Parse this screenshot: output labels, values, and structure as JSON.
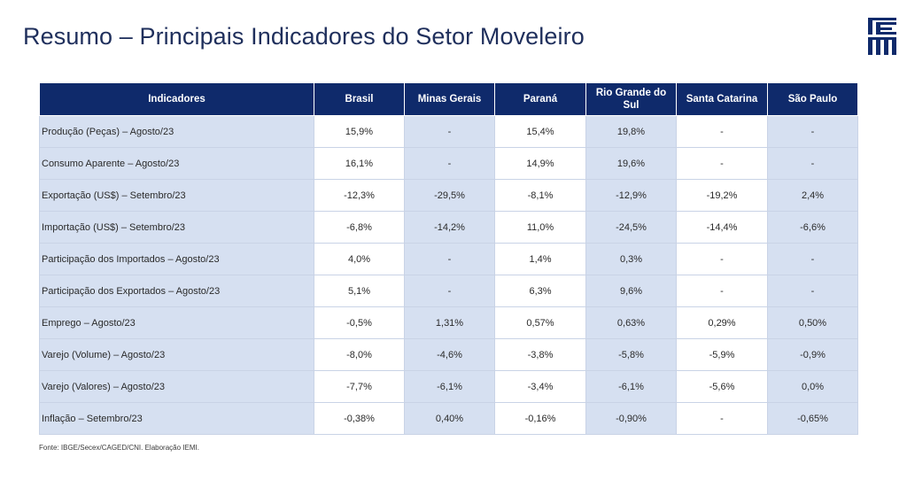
{
  "title": "Resumo – Principais Indicadores do Setor Moveleiro",
  "logo": {
    "name": "IEMI logo",
    "text": "IEMI"
  },
  "table": {
    "headers": [
      "Indicadores",
      "Brasil",
      "Minas Gerais",
      "Paraná",
      "Rio Grande do Sul",
      "Santa Catarina",
      "São Paulo"
    ],
    "rows": [
      {
        "indicator": "Produção (Peças) – Agosto/23",
        "values": [
          "15,9%",
          "-",
          "15,4%",
          "19,8%",
          "-",
          "-"
        ]
      },
      {
        "indicator": "Consumo Aparente – Agosto/23",
        "values": [
          "16,1%",
          "-",
          "14,9%",
          "19,6%",
          "-",
          "-"
        ]
      },
      {
        "indicator": "Exportação (US$) – Setembro/23",
        "values": [
          "-12,3%",
          "-29,5%",
          "-8,1%",
          "-12,9%",
          "-19,2%",
          "2,4%"
        ]
      },
      {
        "indicator": "Importação (US$) – Setembro/23",
        "values": [
          "-6,8%",
          "-14,2%",
          "11,0%",
          "-24,5%",
          "-14,4%",
          "-6,6%"
        ]
      },
      {
        "indicator": "Participação dos Importados – Agosto/23",
        "values": [
          "4,0%",
          "-",
          "1,4%",
          "0,3%",
          "-",
          "-"
        ]
      },
      {
        "indicator": "Participação dos Exportados – Agosto/23",
        "values": [
          "5,1%",
          "-",
          "6,3%",
          "9,6%",
          "-",
          "-"
        ]
      },
      {
        "indicator": "Emprego – Agosto/23",
        "values": [
          "-0,5%",
          "1,31%",
          "0,57%",
          "0,63%",
          "0,29%",
          "0,50%"
        ]
      },
      {
        "indicator": "Varejo (Volume) – Agosto/23",
        "values": [
          "-8,0%",
          "-4,6%",
          "-3,8%",
          "-5,8%",
          "-5,9%",
          "-0,9%"
        ]
      },
      {
        "indicator": "Varejo (Valores) – Agosto/23",
        "values": [
          "-7,7%",
          "-6,1%",
          "-3,4%",
          "-6,1%",
          "-5,6%",
          "0,0%"
        ]
      },
      {
        "indicator": "Inflação – Setembro/23",
        "values": [
          "-0,38%",
          "0,40%",
          "-0,16%",
          "-0,90%",
          "-",
          "-0,65%"
        ]
      }
    ]
  },
  "source": "Fonte: IBGE/Secex/CAGED/CNI. Elaboração IEMI.",
  "colors": {
    "header_bg": "#0f2a6b",
    "title": "#1f2f5c",
    "cell_blue": "#d6e0f1",
    "cell_white": "#ffffff"
  }
}
